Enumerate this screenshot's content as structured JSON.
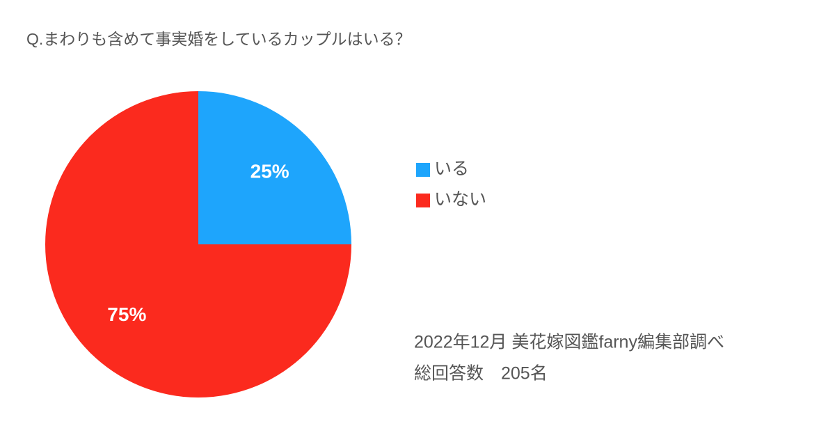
{
  "chart_data": {
    "type": "pie",
    "title": "Q.まわりも含めて事実婚をしているカップルはいる？",
    "categories": [
      "いる",
      "いない"
    ],
    "values": [
      25,
      75
    ],
    "value_labels": [
      "25%",
      "75%"
    ],
    "colors": [
      "#1ea5fc",
      "#fb2a1e"
    ],
    "legend": "right",
    "annotations": [
      "2022年12月 美花嫁図鑑farny編集部調べ",
      "総回答数　205名"
    ]
  }
}
